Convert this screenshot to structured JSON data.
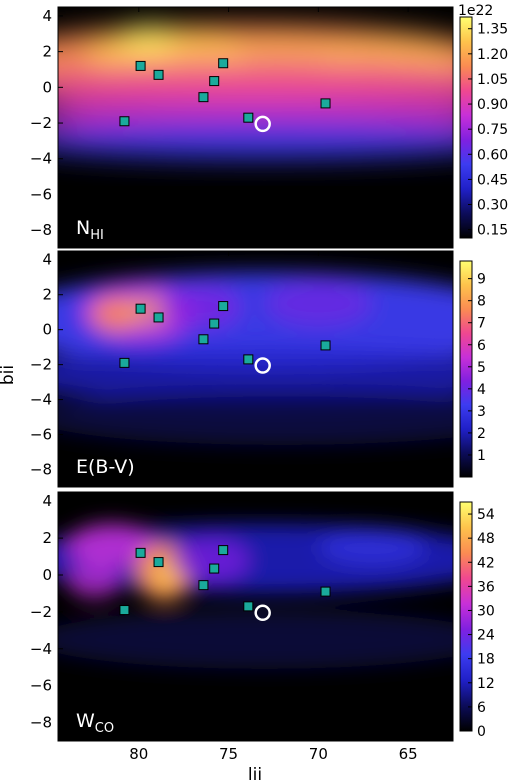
{
  "chart_data": {
    "type": "heatmap",
    "xlabel": "lii",
    "ylabel": "bii",
    "xlim": [
      84.5,
      62.5
    ],
    "ylim": [
      -9,
      4.5
    ],
    "x_ticks": [
      80,
      75,
      70,
      65
    ],
    "x_tick_labels": [
      "80",
      "75",
      "70",
      "65"
    ],
    "y_ticks": [
      4,
      2,
      0,
      -2,
      -4,
      -6,
      -8
    ],
    "y_tick_labels": [
      "4",
      "2",
      "0",
      "−2",
      "−4",
      "−6",
      "−8"
    ],
    "colormap": [
      "#000000",
      "#0c0c5a",
      "#2020c8",
      "#3c3cf0",
      "#8020e0",
      "#c830d8",
      "#f04890",
      "#fb8c52",
      "#fec34c",
      "#ffff70"
    ],
    "markers": {
      "squares": [
        {
          "l": 80.8,
          "b": -1.9
        },
        {
          "l": 79.9,
          "b": 1.2
        },
        {
          "l": 78.9,
          "b": 0.7
        },
        {
          "l": 76.4,
          "b": -0.55
        },
        {
          "l": 75.8,
          "b": 0.35
        },
        {
          "l": 75.3,
          "b": 1.35
        },
        {
          "l": 73.9,
          "b": -1.7
        },
        {
          "l": 69.6,
          "b": -0.9
        }
      ],
      "circle": {
        "l": 73.1,
        "b": -2.05
      },
      "square_color": "#1aaa9c"
    },
    "panels": [
      {
        "label": "N",
        "label_sub": "HI",
        "cbar_exponent": "1e22",
        "cbar_range": [
          0.1,
          1.42
        ],
        "cbar_ticks": [
          "1.35",
          "1.20",
          "1.05",
          "0.90",
          "0.75",
          "0.60",
          "0.45",
          "0.30",
          "0.15"
        ],
        "cbar_tick_values": [
          1.35,
          1.2,
          1.05,
          0.9,
          0.75,
          0.6,
          0.45,
          0.3,
          0.15
        ]
      },
      {
        "label": "E(B-V)",
        "label_sub": "",
        "cbar_exponent": "",
        "cbar_range": [
          0,
          9.8
        ],
        "cbar_ticks": [
          "9",
          "8",
          "7",
          "6",
          "5",
          "4",
          "3",
          "2",
          "1"
        ],
        "cbar_tick_values": [
          9,
          8,
          7,
          6,
          5,
          4,
          3,
          2,
          1
        ]
      },
      {
        "label": "W",
        "label_sub": "CO",
        "cbar_exponent": "",
        "cbar_range": [
          0,
          57
        ],
        "cbar_ticks": [
          "54",
          "48",
          "42",
          "36",
          "30",
          "24",
          "18",
          "12",
          "6",
          "0"
        ],
        "cbar_tick_values": [
          54,
          48,
          42,
          36,
          30,
          24,
          18,
          12,
          6,
          0
        ]
      }
    ]
  }
}
